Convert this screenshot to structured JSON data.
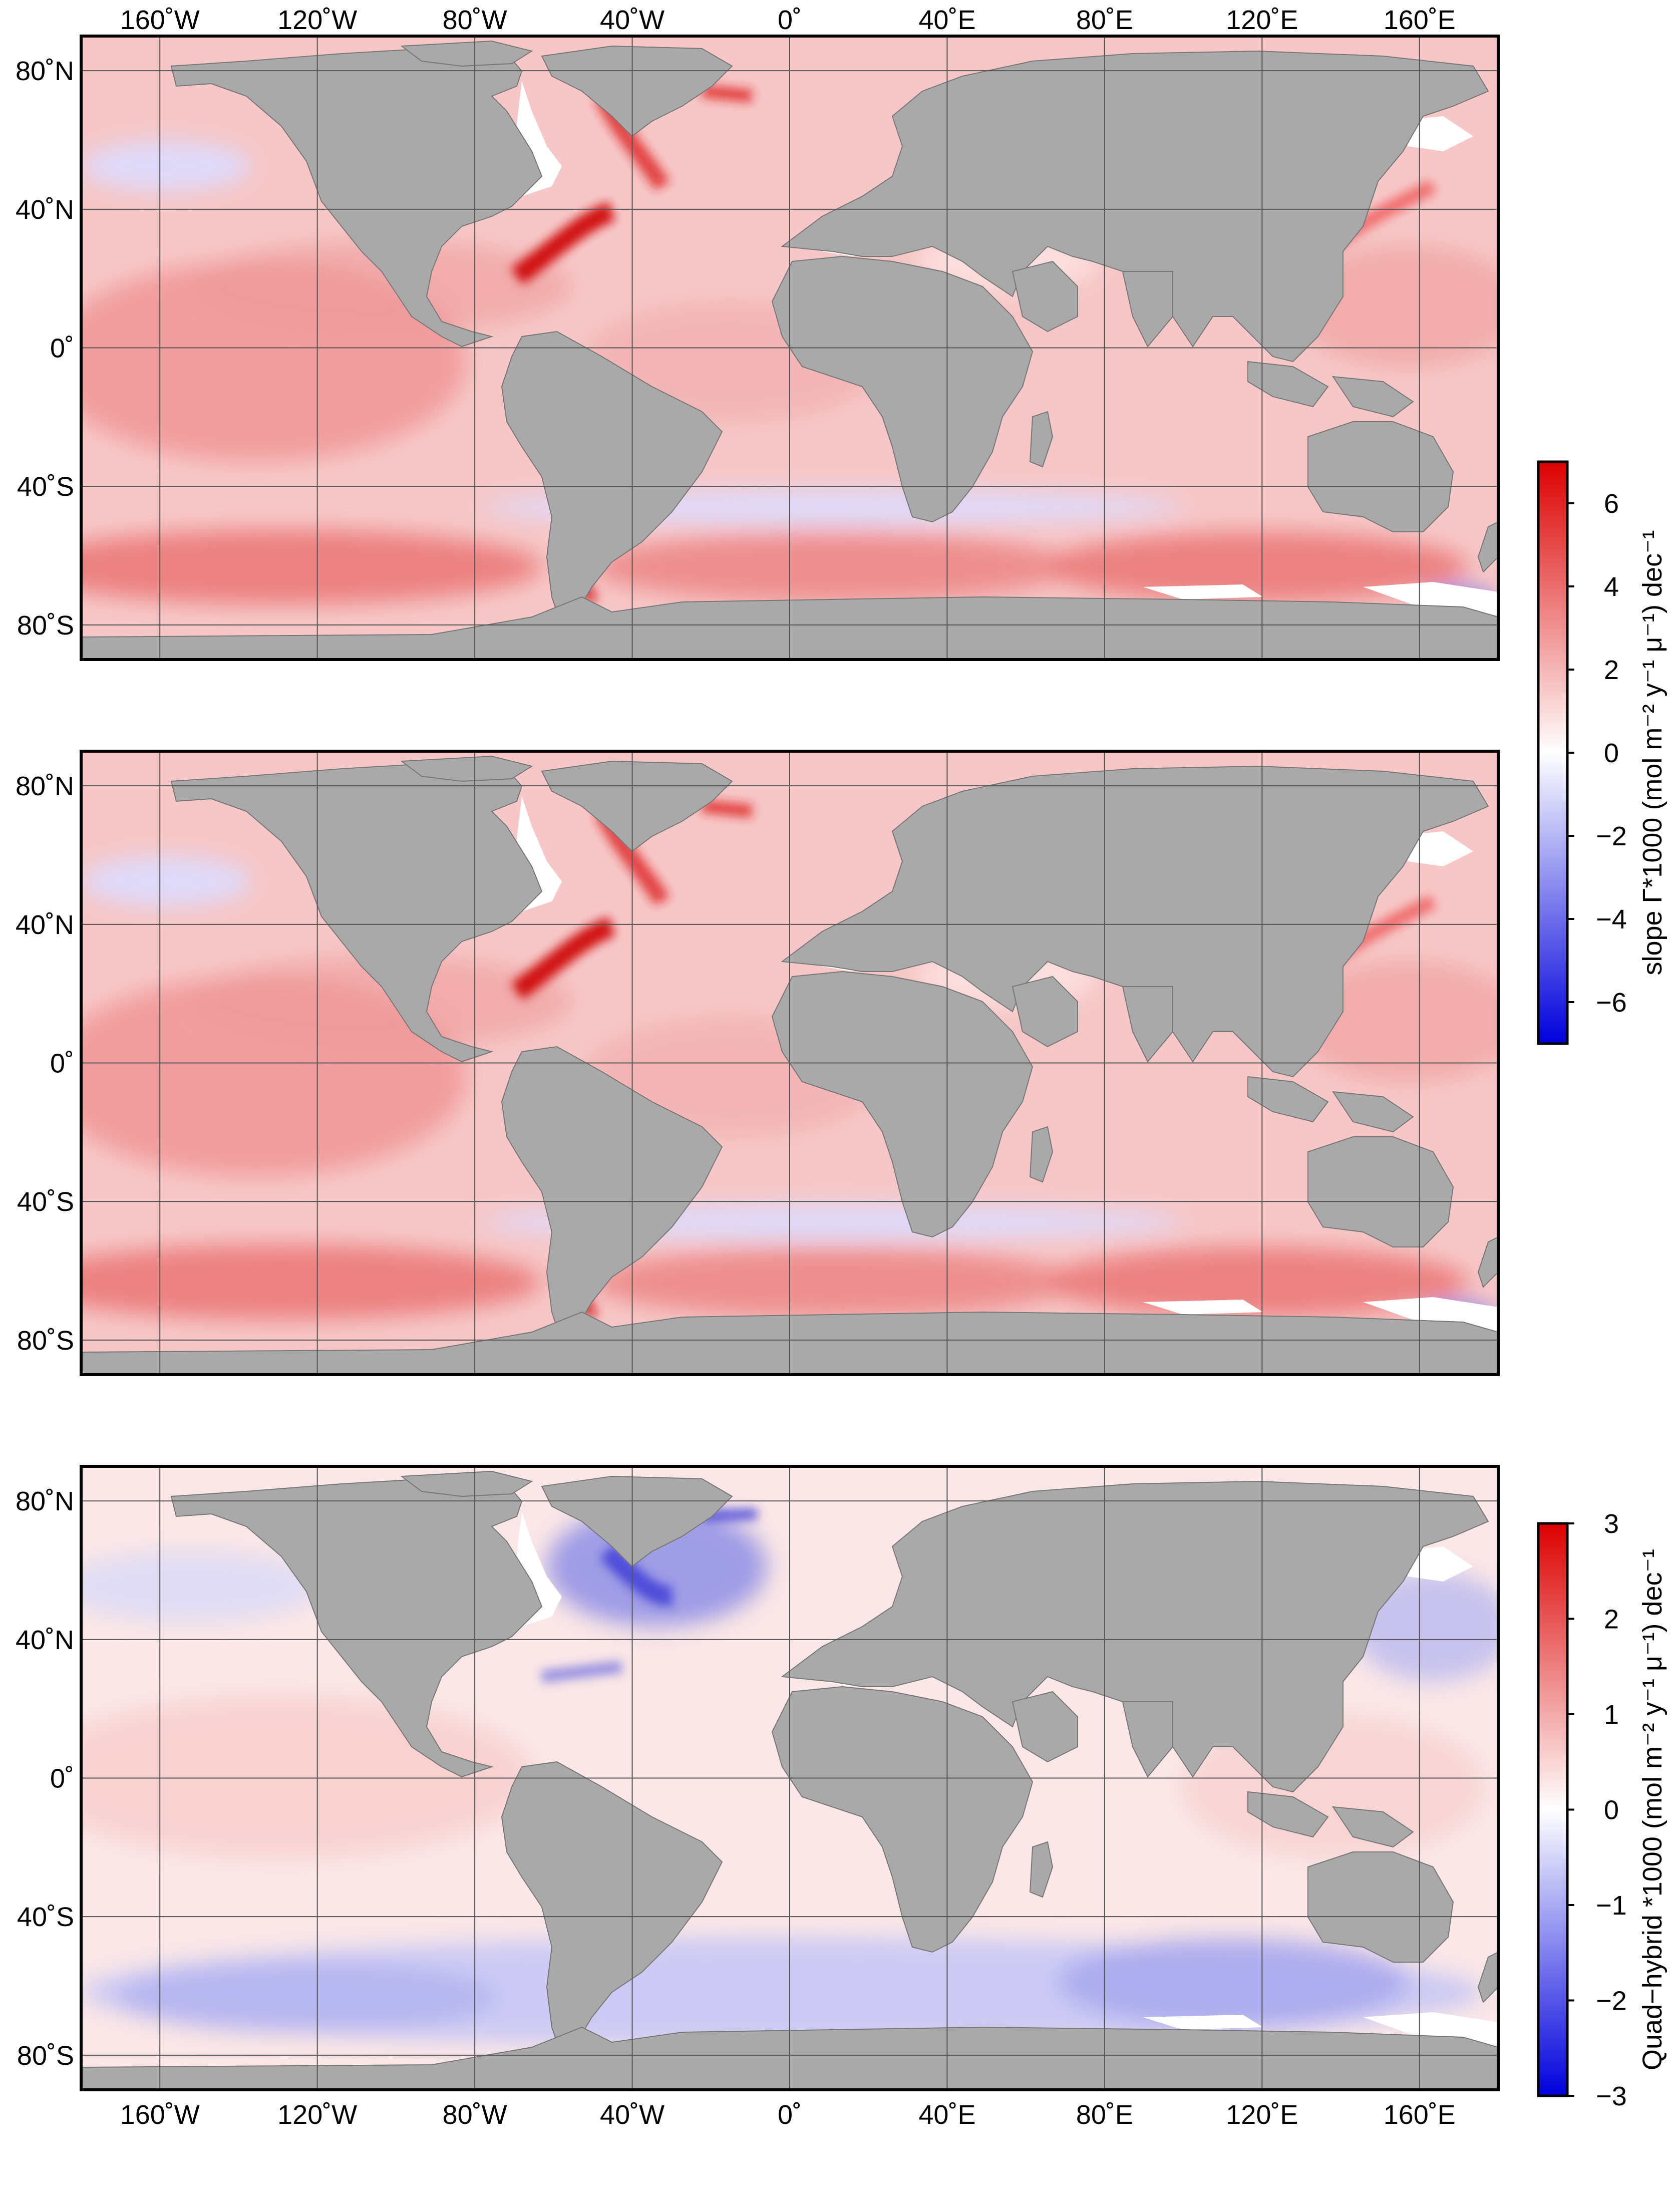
{
  "figure": {
    "top_axis_labels": [
      "160˚W",
      "120˚W",
      "80˚W",
      "40˚W",
      "0˚",
      "40˚E",
      "80˚E",
      "120˚E",
      "160˚E"
    ],
    "bottom_axis_labels": [
      "160˚W",
      "120˚W",
      "80˚W",
      "40˚W",
      "0˚",
      "40˚E",
      "80˚E",
      "120˚E",
      "160˚E"
    ],
    "lat_labels": [
      "80˚N",
      "40˚N",
      "0˚",
      "40˚S",
      "80˚S"
    ],
    "longitudes_deg": [
      -160,
      -120,
      -80,
      -40,
      0,
      40,
      80,
      120,
      160
    ],
    "latitudes_deg": [
      80,
      40,
      0,
      -40,
      -80
    ],
    "map_extent": {
      "lon": [
        -180,
        180
      ],
      "lat": [
        -90,
        90
      ]
    }
  },
  "panels": [
    {
      "name": "panel-1",
      "field": "slope"
    },
    {
      "name": "panel-2",
      "field": "slope"
    },
    {
      "name": "panel-3",
      "field": "quad-hybrid"
    }
  ],
  "colorbars": [
    {
      "name": "slope-colorbar",
      "title": "slope Γ*1000 (mol m⁻² y⁻¹ μ⁻¹) dec⁻¹",
      "range": [
        -7,
        7
      ],
      "tick_values": [
        6,
        4,
        2,
        0,
        -2,
        -4,
        -6
      ],
      "tick_labels": [
        "6",
        "4",
        "2",
        "0",
        "−2",
        "−4",
        "−6"
      ]
    },
    {
      "name": "quad-hybrid-colorbar",
      "title": "Quad−hybrid *1000 (mol m⁻² y⁻¹ μ⁻¹) dec⁻¹",
      "range": [
        -3,
        3
      ],
      "tick_values": [
        3,
        2,
        1,
        0,
        -1,
        -2,
        -3
      ],
      "tick_labels": [
        "3",
        "2",
        "1",
        "0",
        "−1",
        "−2",
        "−3"
      ]
    }
  ],
  "colors": {
    "land": "#a9a9a9",
    "ice": "#ffffff",
    "positive": "#dd0000",
    "negative": "#0000dd",
    "neutral": "#ffffff",
    "gridline": "#555555"
  }
}
